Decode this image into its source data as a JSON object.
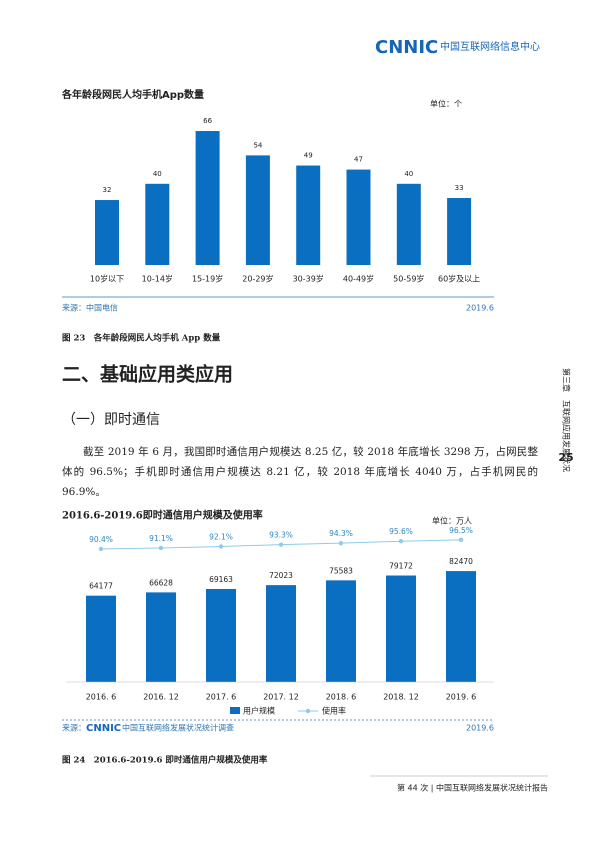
{
  "header": {
    "logo": "CNNIC",
    "org": "中国互联网络信息中心"
  },
  "chart_data": [
    {
      "type": "bar",
      "title": "各年龄段网民人均手机App数量",
      "unit": "单位：个",
      "categories": [
        "10岁以下",
        "10-14岁",
        "15-19岁",
        "20-29岁",
        "30-39岁",
        "40-49岁",
        "50-59岁",
        "60岁及以上"
      ],
      "values": [
        32,
        40,
        66,
        54,
        49,
        47,
        40,
        33
      ],
      "color": "#0b6fc1",
      "source": "来源：中国电信",
      "date": "2019.6",
      "caption": "图 23　各年龄段网民人均手机 App 数量"
    },
    {
      "type": "bar-line",
      "title": "2016.6-2019.6即时通信用户规模及使用率",
      "unit": "单位：万人",
      "categories": [
        "2016. 6",
        "2016. 12",
        "2017. 6",
        "2017. 12",
        "2018. 6",
        "2018. 12",
        "2019. 6"
      ],
      "series": [
        {
          "name": "用户规模",
          "color": "#0b6fc1",
          "type": "bar",
          "values": [
            64177,
            66628,
            69163,
            72023,
            75583,
            79172,
            82470
          ]
        },
        {
          "name": "使用率",
          "color": "#8fcbeb",
          "type": "line",
          "values": [
            90.4,
            91.1,
            92.1,
            93.3,
            94.3,
            95.6,
            96.5
          ],
          "value_labels": [
            "90.4%",
            "91.1%",
            "92.1%",
            "93.3%",
            "94.3%",
            "95.6%",
            "96.5%"
          ]
        }
      ],
      "source_label": "来源：",
      "source_logo": "CNNIC",
      "source_text": "中国互联网络发展状况统计调查",
      "date": "2019.6",
      "caption": "图 24　2016.6-2019.6 即时通信用户规模及使用率"
    }
  ],
  "heading": "二、基础应用类应用",
  "subheading": "（一）即时通信",
  "paragraph": "截至 2019 年 6 月，我国即时通信用户规模达 8.25 亿，较 2018 年底增长 3298 万，占网民整体的 96.5%；手机即时通信用户规模达 8.21 亿，较 2018 年底增长 4040 万，占手机网民的 96.9%。",
  "side": {
    "page_number": "25",
    "chapter": "第三章　互联网应用发展状况"
  },
  "footer": "第 44 次 | 中国互联网络发展状况统计报告"
}
